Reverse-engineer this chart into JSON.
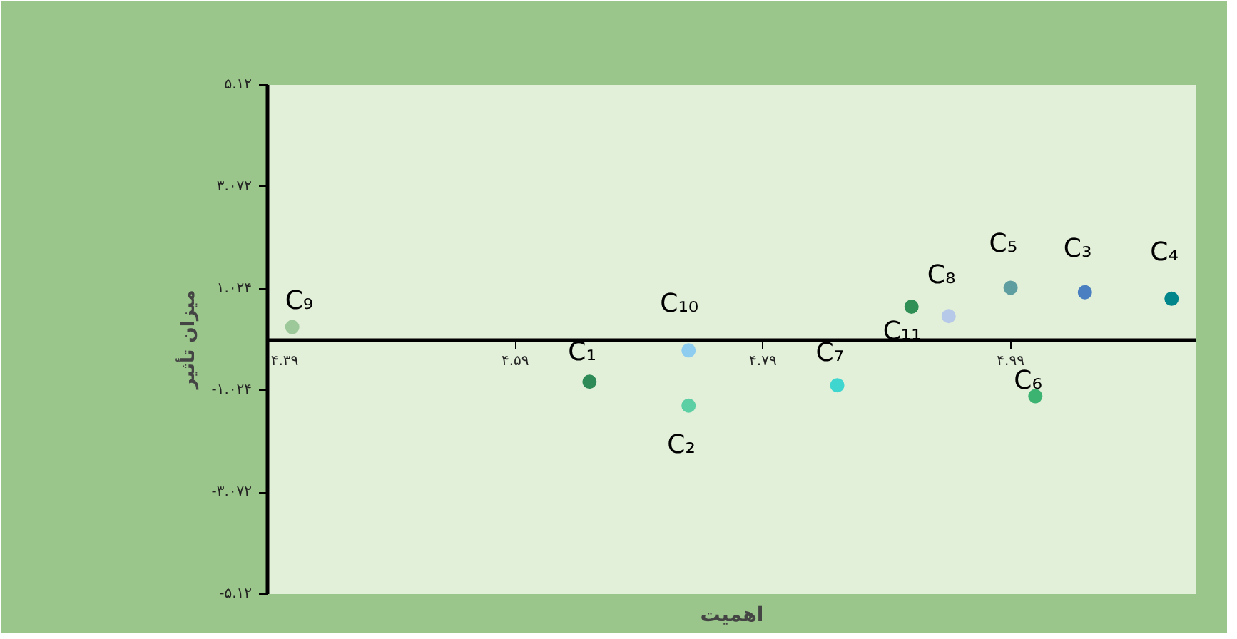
{
  "chart_data": {
    "type": "scatter",
    "xlabel": "اهمیت",
    "ylabel": "میزان تأثیر",
    "xlim": [
      4.39,
      5.14
    ],
    "ylim": [
      -5.12,
      5.12
    ],
    "xticks": [
      {
        "value": 4.39,
        "label": "۴.۳۹"
      },
      {
        "value": 4.59,
        "label": "۴.۵۹"
      },
      {
        "value": 4.79,
        "label": "۴.۷۹"
      },
      {
        "value": 4.99,
        "label": "۴.۹۹"
      }
    ],
    "yticks": [
      {
        "value": -5.12,
        "label": "-۵.۱۲"
      },
      {
        "value": -3.072,
        "label": "-۳.۰۷۲"
      },
      {
        "value": -1.024,
        "label": "-۱.۰۲۴"
      },
      {
        "value": 1.024,
        "label": "۱.۰۲۴"
      },
      {
        "value": 3.072,
        "label": "۳.۰۷۲"
      },
      {
        "value": 5.12,
        "label": "۵.۱۲"
      }
    ],
    "grid": false,
    "legend": false,
    "marker": "circle",
    "series": [
      {
        "name": "C₉",
        "color": "#9dc89a",
        "x": [
          4.41
        ],
        "values": [
          0.25
        ]
      },
      {
        "name": "C₁",
        "color": "#2e8b57",
        "x": [
          4.65
        ],
        "values": [
          -0.85
        ]
      },
      {
        "name": "C₁₀",
        "color": "#8ecdf0",
        "x": [
          4.73
        ],
        "values": [
          -0.22
        ]
      },
      {
        "name": "C₂",
        "color": "#5ccfa5",
        "x": [
          4.73
        ],
        "values": [
          -1.33
        ]
      },
      {
        "name": "C₇",
        "color": "#3fd6d0",
        "x": [
          4.85
        ],
        "values": [
          -0.92
        ]
      },
      {
        "name": "C₁₁",
        "color": "#2f8f55",
        "x": [
          4.91
        ],
        "values": [
          0.66
        ]
      },
      {
        "name": "C₈",
        "color": "#b7c9e8",
        "x": [
          4.94
        ],
        "values": [
          0.47
        ]
      },
      {
        "name": "C₅",
        "color": "#5f9ea0",
        "x": [
          4.99
        ],
        "values": [
          1.04
        ]
      },
      {
        "name": "C₆",
        "color": "#3cb371",
        "x": [
          5.01
        ],
        "values": [
          -1.14
        ]
      },
      {
        "name": "C₃",
        "color": "#4a7fc1",
        "x": [
          5.05
        ],
        "values": [
          0.95
        ]
      },
      {
        "name": "C₄",
        "color": "#00868b",
        "x": [
          5.12
        ],
        "values": [
          0.82
        ]
      }
    ]
  }
}
